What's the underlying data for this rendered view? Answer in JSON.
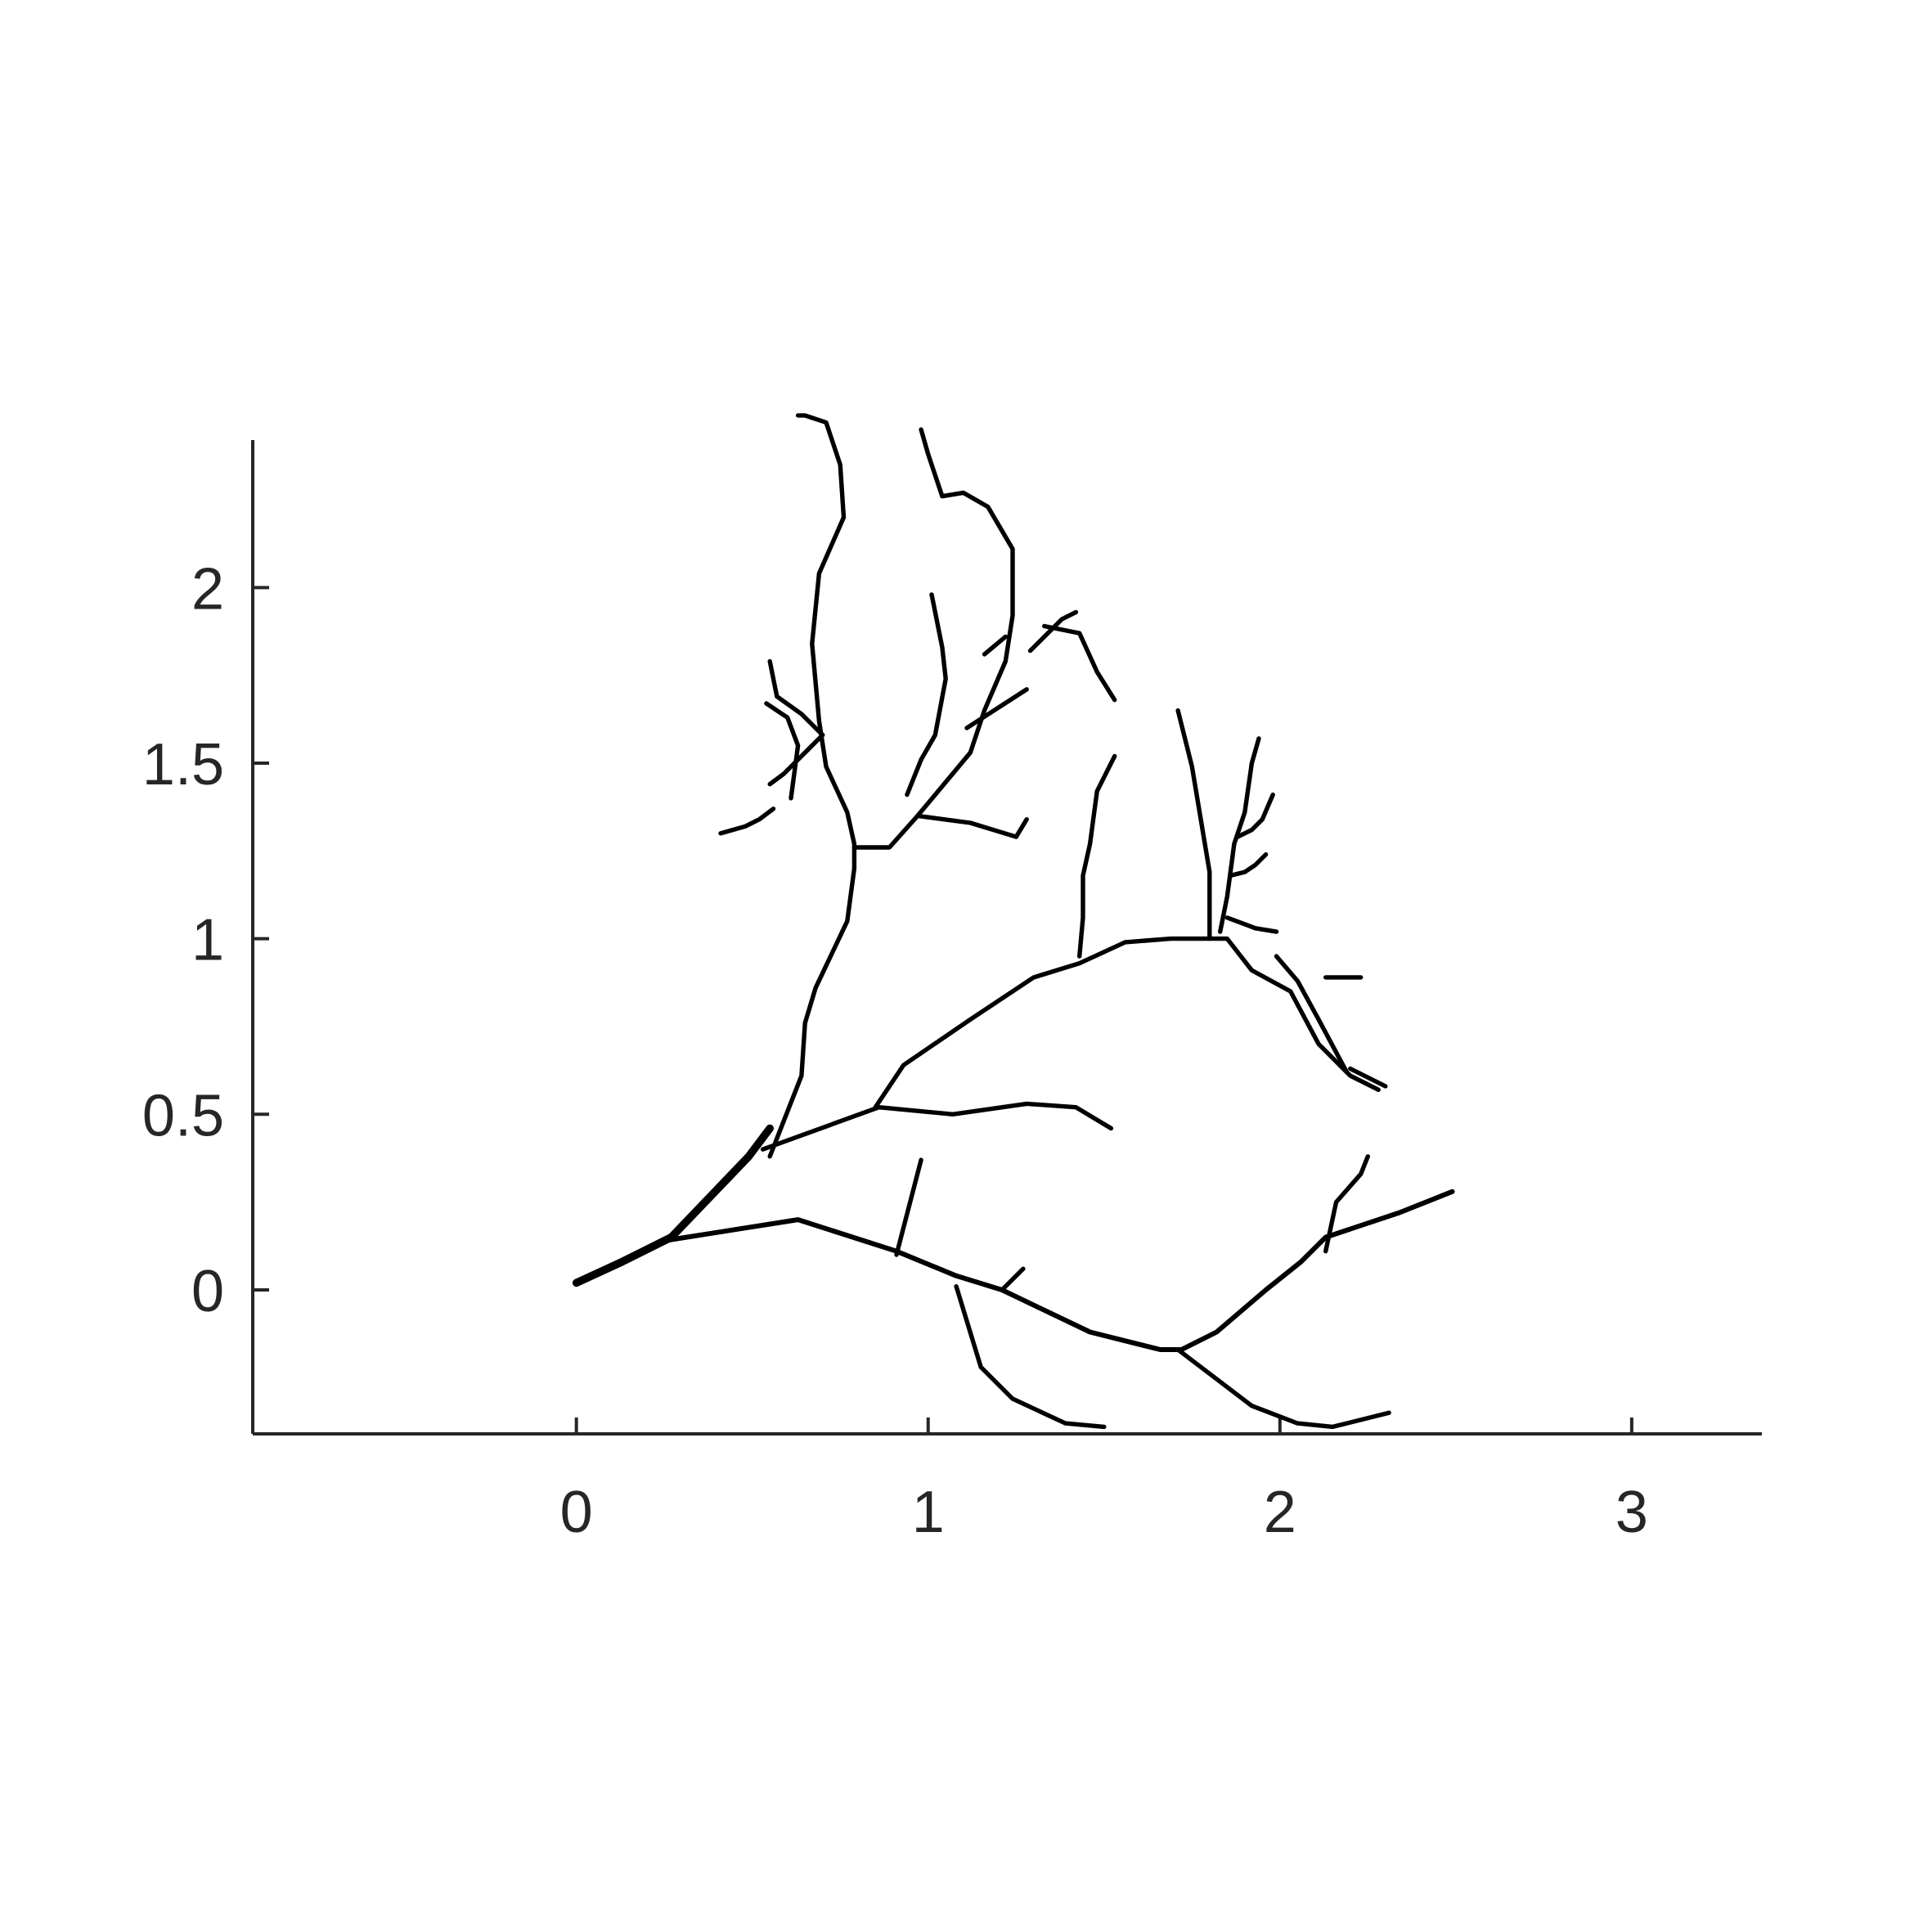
{
  "chart_data": {
    "type": "line",
    "title": "",
    "xlabel": "",
    "ylabel": "",
    "xlim": [
      -0.92,
      3.37
    ],
    "ylim": [
      -0.41,
      2.42
    ],
    "grid": false,
    "legend": "none",
    "box": "off",
    "x_ticks": [
      {
        "value": 0,
        "label": "0"
      },
      {
        "value": 1,
        "label": "1"
      },
      {
        "value": 2,
        "label": "2"
      },
      {
        "value": 3,
        "label": "3"
      }
    ],
    "y_ticks": [
      {
        "value": 0,
        "label": "0"
      },
      {
        "value": 0.5,
        "label": "0.5"
      },
      {
        "value": 1,
        "label": "1"
      },
      {
        "value": 1.5,
        "label": "1.5"
      },
      {
        "value": 2,
        "label": "2"
      }
    ],
    "line_color": "#000000",
    "axis_color": "#262626",
    "series": [
      {
        "width": 1.6,
        "points": [
          [
            0.0,
            0.02
          ],
          [
            0.13,
            0.08
          ],
          [
            0.27,
            0.15
          ],
          [
            0.49,
            0.38
          ],
          [
            0.55,
            0.46
          ]
        ]
      },
      {
        "width": 1.0,
        "points": [
          [
            0.25,
            0.14
          ],
          [
            0.63,
            0.2
          ],
          [
            0.91,
            0.11
          ],
          [
            1.08,
            0.04
          ],
          [
            1.21,
            0.0
          ],
          [
            1.46,
            -0.12
          ],
          [
            1.66,
            -0.17
          ],
          [
            1.72,
            -0.17
          ],
          [
            1.82,
            -0.12
          ],
          [
            1.96,
            0.0
          ],
          [
            2.06,
            0.08
          ],
          [
            2.13,
            0.15
          ],
          [
            2.34,
            0.22
          ],
          [
            2.49,
            0.28
          ]
        ]
      },
      {
        "width": 0.9,
        "points": [
          [
            0.55,
            0.38
          ],
          [
            0.64,
            0.61
          ],
          [
            0.65,
            0.76
          ],
          [
            0.68,
            0.86
          ],
          [
            0.77,
            1.05
          ],
          [
            0.79,
            1.2
          ],
          [
            0.79,
            1.27
          ],
          [
            0.77,
            1.36
          ],
          [
            0.71,
            1.49
          ],
          [
            0.69,
            1.62
          ],
          [
            0.67,
            1.84
          ],
          [
            0.69,
            2.04
          ],
          [
            0.76,
            2.2
          ],
          [
            0.75,
            2.35
          ],
          [
            0.71,
            2.47
          ],
          [
            0.65,
            2.49
          ],
          [
            0.63,
            2.49
          ]
        ]
      },
      {
        "width": 0.9,
        "points": [
          [
            0.53,
            0.4
          ],
          [
            0.86,
            0.52
          ],
          [
            1.07,
            0.5
          ],
          [
            1.28,
            0.53
          ],
          [
            1.42,
            0.52
          ],
          [
            1.52,
            0.46
          ]
        ]
      },
      {
        "width": 0.9,
        "points": [
          [
            0.85,
            0.52
          ],
          [
            0.93,
            0.64
          ],
          [
            1.12,
            0.77
          ],
          [
            1.3,
            0.89
          ],
          [
            1.43,
            0.93
          ],
          [
            1.56,
            0.99
          ],
          [
            1.69,
            1.0
          ],
          [
            1.79,
            1.0
          ],
          [
            1.85,
            1.0
          ],
          [
            1.92,
            0.91
          ],
          [
            2.03,
            0.85
          ],
          [
            2.11,
            0.7
          ],
          [
            2.2,
            0.61
          ],
          [
            2.28,
            0.57
          ]
        ]
      },
      {
        "width": 0.9,
        "points": [
          [
            1.8,
            1.0
          ],
          [
            1.8,
            1.19
          ],
          [
            1.78,
            1.31
          ],
          [
            1.75,
            1.49
          ],
          [
            1.73,
            1.57
          ],
          [
            1.71,
            1.65
          ]
        ]
      },
      {
        "width": 0.9,
        "points": [
          [
            1.71,
            -0.17
          ],
          [
            1.92,
            -0.33
          ],
          [
            2.05,
            -0.38
          ],
          [
            2.15,
            -0.39
          ],
          [
            2.31,
            -0.35
          ]
        ]
      },
      {
        "width": 0.9,
        "points": [
          [
            1.08,
            0.01
          ],
          [
            1.15,
            -0.22
          ],
          [
            1.24,
            -0.31
          ],
          [
            1.39,
            -0.38
          ],
          [
            1.5,
            -0.39
          ]
        ]
      },
      {
        "width": 0.9,
        "points": [
          [
            0.91,
            0.1
          ],
          [
            0.98,
            0.37
          ]
        ]
      },
      {
        "width": 0.9,
        "points": [
          [
            1.21,
            0.0
          ],
          [
            1.27,
            0.06
          ]
        ]
      },
      {
        "width": 0.9,
        "points": [
          [
            2.13,
            0.11
          ],
          [
            2.16,
            0.25
          ],
          [
            2.23,
            0.33
          ],
          [
            2.25,
            0.38
          ]
        ]
      },
      {
        "width": 0.9,
        "points": [
          [
            0.79,
            1.26
          ],
          [
            0.89,
            1.26
          ],
          [
            0.97,
            1.35
          ],
          [
            1.12,
            1.53
          ],
          [
            1.16,
            1.65
          ],
          [
            1.22,
            1.79
          ],
          [
            1.24,
            1.92
          ],
          [
            1.24,
            2.11
          ],
          [
            1.17,
            2.23
          ],
          [
            1.1,
            2.27
          ],
          [
            1.04,
            2.26
          ],
          [
            1.0,
            2.38
          ],
          [
            0.98,
            2.45
          ]
        ]
      },
      {
        "width": 0.9,
        "points": [
          [
            0.97,
            1.35
          ],
          [
            1.12,
            1.33
          ],
          [
            1.25,
            1.29
          ]
        ]
      },
      {
        "width": 0.9,
        "points": [
          [
            1.25,
            1.29
          ],
          [
            1.28,
            1.34
          ]
        ]
      },
      {
        "width": 0.9,
        "points": [
          [
            0.94,
            1.41
          ],
          [
            0.98,
            1.51
          ],
          [
            1.02,
            1.58
          ],
          [
            1.05,
            1.74
          ],
          [
            1.04,
            1.83
          ],
          [
            1.01,
            1.98
          ]
        ]
      },
      {
        "width": 0.9,
        "points": [
          [
            1.11,
            1.6
          ],
          [
            1.28,
            1.71
          ]
        ]
      },
      {
        "width": 0.9,
        "points": [
          [
            1.16,
            1.81
          ],
          [
            1.22,
            1.86
          ]
        ]
      },
      {
        "width": 0.9,
        "points": [
          [
            1.29,
            1.82
          ],
          [
            1.38,
            1.91
          ],
          [
            1.42,
            1.93
          ]
        ]
      },
      {
        "width": 0.9,
        "points": [
          [
            1.33,
            1.89
          ],
          [
            1.43,
            1.87
          ],
          [
            1.48,
            1.76
          ],
          [
            1.53,
            1.68
          ]
        ]
      },
      {
        "width": 0.9,
        "points": [
          [
            1.43,
            0.95
          ],
          [
            1.44,
            1.06
          ],
          [
            1.44,
            1.18
          ],
          [
            1.46,
            1.27
          ],
          [
            1.48,
            1.42
          ],
          [
            1.53,
            1.52
          ]
        ]
      },
      {
        "width": 0.9,
        "points": [
          [
            1.83,
            1.02
          ],
          [
            1.85,
            1.12
          ],
          [
            1.87,
            1.27
          ],
          [
            1.9,
            1.36
          ],
          [
            1.92,
            1.5
          ],
          [
            1.94,
            1.57
          ]
        ]
      },
      {
        "width": 0.9,
        "points": [
          [
            1.85,
            1.06
          ],
          [
            1.93,
            1.03
          ],
          [
            1.99,
            1.02
          ]
        ]
      },
      {
        "width": 0.9,
        "points": [
          [
            1.86,
            1.18
          ],
          [
            1.9,
            1.19
          ],
          [
            1.93,
            1.21
          ],
          [
            1.96,
            1.24
          ]
        ]
      },
      {
        "width": 0.9,
        "points": [
          [
            1.88,
            1.29
          ],
          [
            1.92,
            1.31
          ],
          [
            1.95,
            1.34
          ],
          [
            1.98,
            1.41
          ]
        ]
      },
      {
        "width": 0.9,
        "points": [
          [
            1.99,
            0.95
          ],
          [
            2.05,
            0.88
          ],
          [
            2.11,
            0.77
          ],
          [
            2.19,
            0.62
          ]
        ]
      },
      {
        "width": 0.9,
        "points": [
          [
            2.13,
            0.89
          ],
          [
            2.23,
            0.89
          ]
        ]
      },
      {
        "width": 0.9,
        "points": [
          [
            2.2,
            0.63
          ],
          [
            2.3,
            0.58
          ]
        ]
      },
      {
        "width": 0.9,
        "points": [
          [
            0.61,
            1.4
          ],
          [
            0.63,
            1.55
          ],
          [
            0.6,
            1.63
          ],
          [
            0.54,
            1.67
          ]
        ]
      },
      {
        "width": 0.9,
        "points": [
          [
            0.41,
            1.3
          ],
          [
            0.48,
            1.32
          ],
          [
            0.52,
            1.34
          ],
          [
            0.56,
            1.37
          ]
        ]
      },
      {
        "width": 0.9,
        "points": [
          [
            0.55,
            1.44
          ],
          [
            0.59,
            1.47
          ],
          [
            0.66,
            1.54
          ],
          [
            0.7,
            1.58
          ]
        ]
      },
      {
        "width": 0.9,
        "points": [
          [
            0.7,
            1.58
          ],
          [
            0.64,
            1.64
          ],
          [
            0.57,
            1.69
          ],
          [
            0.55,
            1.79
          ]
        ]
      }
    ]
  }
}
